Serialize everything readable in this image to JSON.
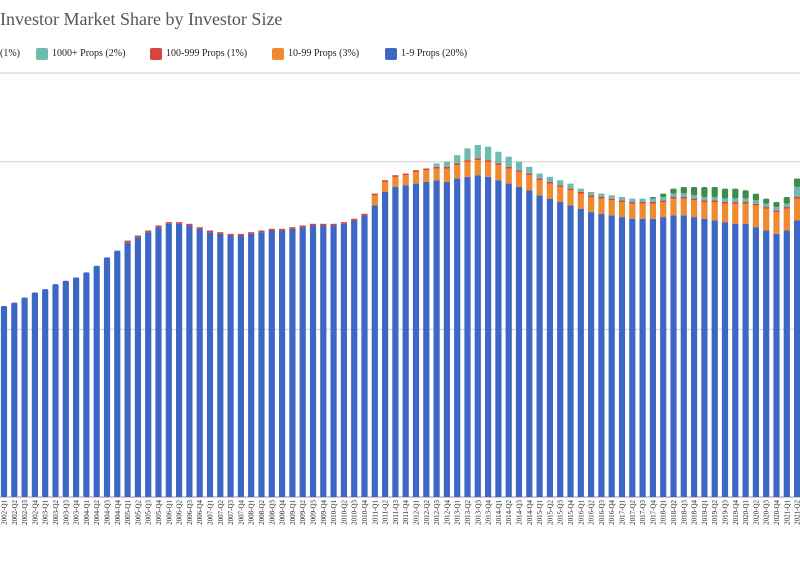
{
  "chart_data": {
    "type": "bar",
    "stacked": true,
    "title": "Investor Market Share by Investor Size",
    "legend_position": "top",
    "grid": true,
    "legend": [
      {
        "label": "(1%)",
        "color": "#3d8c47"
      },
      {
        "label": "1000+ Props (2%)",
        "color": "#6cbcb0"
      },
      {
        "label": "100-999 Props (1%)",
        "color": "#d9453c"
      },
      {
        "label": "10-99 Props (3%)",
        "color": "#f08a30"
      },
      {
        "label": "1-9 Props (20%)",
        "color": "#3d67c4"
      }
    ],
    "series_colors": [
      "#3d67c4",
      "#f08a30",
      "#d9453c",
      "#6cbcb0",
      "#3d8c47"
    ],
    "categories": [
      "2002-Q1",
      "2002-Q2",
      "2002-Q3",
      "2002-Q4",
      "2003-Q1",
      "2003-Q2",
      "2003-Q3",
      "2003-Q4",
      "2004-Q1",
      "2004-Q2",
      "2004-Q3",
      "2004-Q4",
      "2005-Q1",
      "2005-Q2",
      "2005-Q3",
      "2005-Q4",
      "2006-Q1",
      "2006-Q2",
      "2006-Q3",
      "2006-Q4",
      "2007-Q1",
      "2007-Q2",
      "2007-Q3",
      "2007-Q4",
      "2008-Q1",
      "2008-Q2",
      "2008-Q3",
      "2008-Q4",
      "2009-Q1",
      "2009-Q2",
      "2009-Q3",
      "2009-Q4",
      "2010-Q1",
      "2010-Q2",
      "2010-Q3",
      "2010-Q4",
      "2011-Q1",
      "2011-Q2",
      "2011-Q3",
      "2011-Q4",
      "2012-Q1",
      "2012-Q2",
      "2012-Q3",
      "2012-Q4",
      "2013-Q1",
      "2013-Q2",
      "2013-Q3",
      "2013-Q4",
      "2014-Q1",
      "2014-Q2",
      "2014-Q3",
      "2014-Q4",
      "2015-Q1",
      "2015-Q2",
      "2015-Q3",
      "2015-Q4",
      "2016-Q1",
      "2016-Q2",
      "2016-Q3",
      "2016-Q4",
      "2017-Q1",
      "2017-Q2",
      "2017-Q3",
      "2017-Q4",
      "2018-Q1",
      "2018-Q2",
      "2018-Q3",
      "2018-Q4",
      "2019-Q1",
      "2019-Q2",
      "2019-Q3",
      "2019-Q4",
      "2020-Q1",
      "2020-Q2",
      "2020-Q3",
      "2020-Q4",
      "2021-Q1",
      "2021-Q2"
    ],
    "values_1_9": [
      11.4,
      11.6,
      11.9,
      12.2,
      12.4,
      12.7,
      12.9,
      13.1,
      13.4,
      13.8,
      14.3,
      14.7,
      15.2,
      15.5,
      15.8,
      16.1,
      16.3,
      16.3,
      16.2,
      16.0,
      15.8,
      15.7,
      15.6,
      15.6,
      15.7,
      15.8,
      15.9,
      15.9,
      16.0,
      16.1,
      16.2,
      16.2,
      16.2,
      16.3,
      16.5,
      16.8,
      17.4,
      18.2,
      18.5,
      18.6,
      18.7,
      18.8,
      18.9,
      18.8,
      19.0,
      19.1,
      19.2,
      19.1,
      18.9,
      18.7,
      18.5,
      18.3,
      18.0,
      17.8,
      17.6,
      17.4,
      17.2,
      17.0,
      16.9,
      16.8,
      16.7,
      16.6,
      16.6,
      16.6,
      16.7,
      16.8,
      16.8,
      16.7,
      16.6,
      16.5,
      16.4,
      16.3,
      16.3,
      16.1,
      15.9,
      15.7,
      15.9,
      16.5
    ],
    "values_10_99": [
      0,
      0,
      0,
      0,
      0,
      0,
      0,
      0,
      0,
      0,
      0,
      0,
      0,
      0,
      0,
      0,
      0,
      0,
      0,
      0,
      0,
      0,
      0,
      0,
      0,
      0,
      0,
      0,
      0,
      0,
      0,
      0,
      0,
      0,
      0,
      0,
      0.6,
      0.6,
      0.6,
      0.6,
      0.7,
      0.7,
      0.7,
      0.8,
      0.8,
      0.9,
      0.9,
      0.9,
      0.9,
      0.9,
      0.9,
      0.9,
      0.9,
      0.9,
      0.9,
      0.9,
      0.9,
      0.9,
      0.9,
      0.9,
      0.9,
      0.9,
      0.9,
      0.9,
      0.9,
      1.0,
      1.0,
      1.0,
      1.0,
      1.1,
      1.1,
      1.2,
      1.2,
      1.3,
      1.3,
      1.3,
      1.3,
      1.3
    ],
    "values_100_999": [
      0,
      0,
      0,
      0,
      0,
      0,
      0,
      0,
      0,
      0,
      0,
      0,
      0.1,
      0.1,
      0.1,
      0.1,
      0.1,
      0.1,
      0.1,
      0.1,
      0.1,
      0.1,
      0.1,
      0.1,
      0.1,
      0.1,
      0.1,
      0.1,
      0.1,
      0.1,
      0.1,
      0.1,
      0.1,
      0.1,
      0.1,
      0.1,
      0.1,
      0.1,
      0.1,
      0.1,
      0.1,
      0.1,
      0.1,
      0.1,
      0.1,
      0.1,
      0.1,
      0.1,
      0.1,
      0.1,
      0.1,
      0.1,
      0.1,
      0.1,
      0.1,
      0.1,
      0.1,
      0.1,
      0.1,
      0.1,
      0.1,
      0.1,
      0.1,
      0.1,
      0.1,
      0.1,
      0.1,
      0.1,
      0.1,
      0.1,
      0.1,
      0.1,
      0.1,
      0.1,
      0.1,
      0.1,
      0.1,
      0.1
    ],
    "values_1000_plus": [
      0,
      0,
      0,
      0,
      0,
      0,
      0,
      0,
      0,
      0,
      0,
      0,
      0,
      0,
      0,
      0,
      0,
      0,
      0,
      0,
      0,
      0,
      0,
      0,
      0,
      0,
      0,
      0,
      0,
      0,
      0,
      0,
      0,
      0,
      0,
      0,
      0,
      0,
      0,
      0,
      0,
      0,
      0.2,
      0.3,
      0.5,
      0.7,
      0.8,
      0.8,
      0.7,
      0.6,
      0.5,
      0.4,
      0.3,
      0.3,
      0.3,
      0.3,
      0.2,
      0.2,
      0.2,
      0.2,
      0.2,
      0.2,
      0.2,
      0.2,
      0.2,
      0.2,
      0.2,
      0.2,
      0.2,
      0.2,
      0.2,
      0.2,
      0.2,
      0.2,
      0.2,
      0.2,
      0.2,
      0.6
    ],
    "values_other": [
      0,
      0,
      0,
      0,
      0,
      0,
      0,
      0,
      0,
      0,
      0,
      0,
      0,
      0,
      0,
      0,
      0,
      0,
      0,
      0,
      0,
      0,
      0,
      0,
      0,
      0,
      0,
      0,
      0,
      0,
      0,
      0,
      0,
      0,
      0,
      0,
      0,
      0,
      0,
      0,
      0,
      0,
      0,
      0,
      0,
      0,
      0,
      0,
      0,
      0,
      0,
      0,
      0,
      0,
      0,
      0,
      0,
      0,
      0,
      0,
      0,
      0,
      0,
      0.1,
      0.2,
      0.3,
      0.4,
      0.5,
      0.6,
      0.6,
      0.6,
      0.6,
      0.5,
      0.4,
      0.3,
      0.3,
      0.4,
      0.5
    ],
    "ylim": [
      0,
      25
    ],
    "gridlines": [
      10,
      20
    ]
  }
}
